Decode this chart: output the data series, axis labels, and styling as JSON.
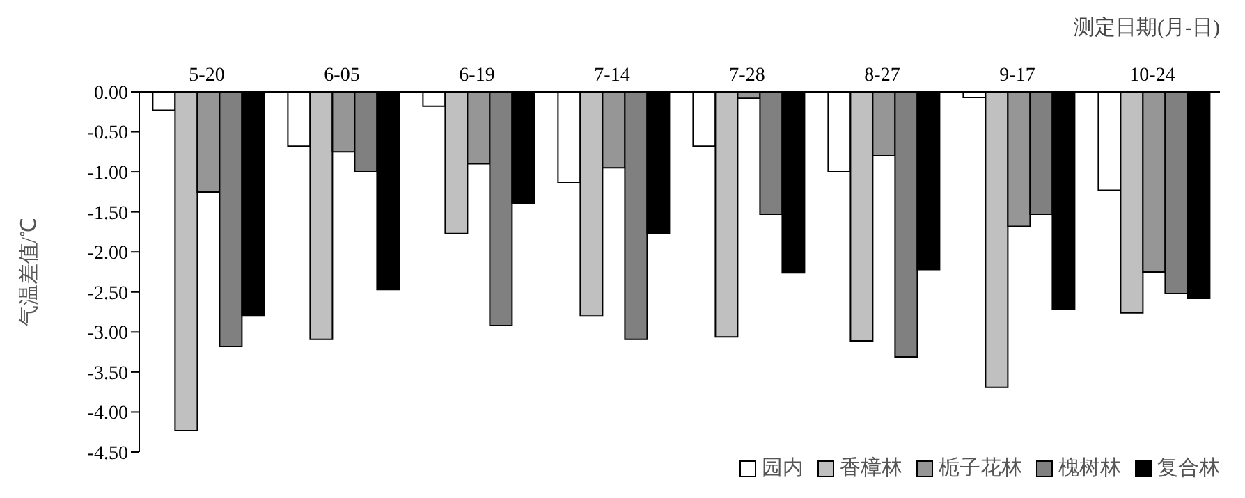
{
  "chart_data": {
    "type": "bar",
    "xlabel": "测定日期(月-日)",
    "ylabel": "气温差值/℃",
    "categories": [
      "5-20",
      "6-05",
      "6-19",
      "7-14",
      "7-28",
      "8-27",
      "9-17",
      "10-24"
    ],
    "series": [
      {
        "name": "园内",
        "color": "#ffffff",
        "values": [
          -0.23,
          -0.68,
          -0.18,
          -1.13,
          -0.68,
          -1.0,
          -0.07,
          -1.23
        ]
      },
      {
        "name": "香樟林",
        "color": "#c0c0c0",
        "values": [
          -4.23,
          -3.09,
          -1.77,
          -2.8,
          -3.06,
          -3.11,
          -3.69,
          -2.76
        ]
      },
      {
        "name": "栀子花林",
        "color": "#969696",
        "values": [
          -1.25,
          -0.75,
          -0.9,
          -0.95,
          -0.08,
          -0.8,
          -1.68,
          -2.25
        ]
      },
      {
        "name": "槐树林",
        "color": "#808080",
        "values": [
          -3.18,
          -1.0,
          -2.92,
          -3.09,
          -1.53,
          -3.31,
          -1.53,
          -2.52
        ]
      },
      {
        "name": "复合林",
        "color": "#000000",
        "values": [
          -2.8,
          -2.47,
          -1.39,
          -1.77,
          -2.26,
          -2.22,
          -2.71,
          -2.58
        ]
      }
    ],
    "ylim": [
      -4.5,
      0
    ],
    "yticks": [
      {
        "value": 0,
        "label": "0.00"
      },
      {
        "value": -0.5,
        "label": "-0.50"
      },
      {
        "value": -1,
        "label": "-1.00"
      },
      {
        "value": -1.5,
        "label": "-1.50"
      },
      {
        "value": -2,
        "label": "-2.00"
      },
      {
        "value": -2.5,
        "label": "-2.50"
      },
      {
        "value": -3,
        "label": "-3.00"
      },
      {
        "value": -3.5,
        "label": "-3.50"
      },
      {
        "value": -4,
        "label": "-4.00"
      },
      {
        "value": -4.5,
        "label": "-4.50"
      }
    ],
    "grid": false,
    "legend": "bottom right"
  }
}
